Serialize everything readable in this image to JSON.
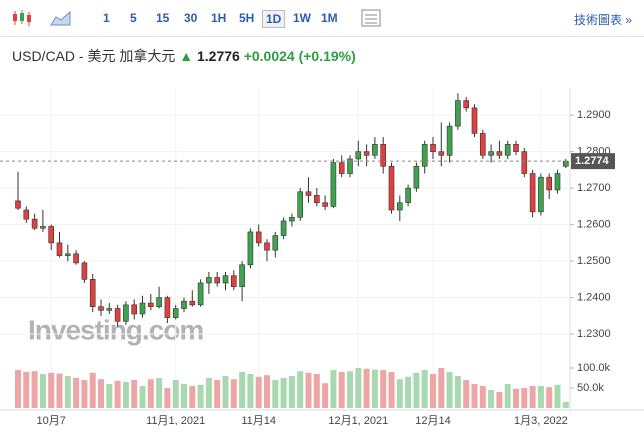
{
  "toolbar": {
    "intervals": [
      "1",
      "5",
      "15",
      "30",
      "1H",
      "5H",
      "1D",
      "1W",
      "1M"
    ],
    "active": "1D",
    "technical": "技術圖表"
  },
  "header": {
    "symbol": "USD/CAD - 美元 加拿大元",
    "price": "1.2776",
    "change": "+0.0024",
    "change_pct": "(+0.19%)"
  },
  "chart_data": {
    "type": "candlestick",
    "watermark": "Investing.com",
    "categories": [
      null,
      null,
      null,
      null,
      "10月7",
      null,
      null,
      null,
      null,
      null,
      null,
      null,
      null,
      null,
      null,
      null,
      null,
      null,
      null,
      "11月1, 2021",
      null,
      null,
      null,
      null,
      null,
      null,
      null,
      null,
      null,
      "11月14",
      null,
      null,
      null,
      null,
      null,
      null,
      null,
      null,
      null,
      null,
      null,
      "12月1, 2021",
      null,
      null,
      null,
      null,
      null,
      null,
      null,
      null,
      "12月14",
      null,
      null,
      null,
      null,
      null,
      null,
      null,
      null,
      null,
      null,
      null,
      null,
      "1月3, 2022",
      null,
      null,
      null
    ],
    "open": [
      1.2665,
      1.264,
      1.2615,
      1.259,
      1.2595,
      1.255,
      1.2515,
      1.252,
      1.2495,
      1.245,
      1.2375,
      1.2365,
      1.237,
      1.2335,
      1.238,
      1.2355,
      1.2385,
      1.2375,
      1.24,
      1.2345,
      1.237,
      1.239,
      1.238,
      1.244,
      1.2455,
      1.244,
      1.246,
      1.243,
      1.249,
      1.258,
      1.255,
      1.253,
      1.257,
      1.261,
      1.262,
      1.269,
      1.268,
      1.266,
      1.265,
      1.277,
      1.274,
      1.278,
      1.28,
      1.279,
      1.282,
      1.276,
      1.264,
      1.266,
      1.27,
      1.276,
      1.282,
      1.28,
      1.279,
      1.287,
      1.294,
      1.292,
      1.285,
      1.279,
      1.28,
      1.279,
      1.282,
      1.28,
      1.274,
      1.2635,
      1.273,
      1.2695,
      1.276
    ],
    "high": [
      1.2745,
      1.265,
      1.263,
      1.264,
      1.26,
      1.258,
      1.2545,
      1.253,
      1.25,
      1.2465,
      1.2395,
      1.2385,
      1.238,
      1.239,
      1.2395,
      1.2405,
      1.241,
      1.243,
      1.2405,
      1.238,
      1.24,
      1.242,
      1.245,
      1.247,
      1.247,
      1.247,
      1.2475,
      1.25,
      1.259,
      1.26,
      1.256,
      1.258,
      1.262,
      1.263,
      1.27,
      1.273,
      1.27,
      1.268,
      1.278,
      1.279,
      1.279,
      1.283,
      1.282,
      1.284,
      1.284,
      1.277,
      1.268,
      1.271,
      1.277,
      1.283,
      1.284,
      1.288,
      1.288,
      1.296,
      1.295,
      1.293,
      1.286,
      1.282,
      1.283,
      1.283,
      1.283,
      1.281,
      1.275,
      1.274,
      1.274,
      1.275,
      1.278
    ],
    "low": [
      1.264,
      1.2605,
      1.2585,
      1.258,
      1.253,
      1.251,
      1.25,
      1.249,
      1.244,
      1.236,
      1.235,
      1.2355,
      1.232,
      1.2325,
      1.234,
      1.2345,
      1.2365,
      1.237,
      1.233,
      1.234,
      1.236,
      1.2375,
      1.2375,
      1.241,
      1.243,
      1.242,
      1.242,
      1.239,
      1.248,
      1.254,
      1.25,
      1.251,
      1.256,
      1.2595,
      1.261,
      1.266,
      1.265,
      1.264,
      1.2645,
      1.273,
      1.273,
      1.276,
      1.276,
      1.278,
      1.274,
      1.263,
      1.261,
      1.265,
      1.269,
      1.274,
      1.278,
      1.276,
      1.277,
      1.286,
      1.291,
      1.284,
      1.278,
      1.277,
      1.278,
      1.278,
      1.279,
      1.273,
      1.262,
      1.2625,
      1.267,
      1.2685,
      1.2755
    ],
    "close": [
      1.2645,
      1.2615,
      1.259,
      1.2595,
      1.255,
      1.2515,
      1.252,
      1.2495,
      1.245,
      1.2375,
      1.2365,
      1.237,
      1.2335,
      1.238,
      1.2355,
      1.2385,
      1.2375,
      1.24,
      1.2345,
      1.237,
      1.239,
      1.238,
      1.244,
      1.2455,
      1.244,
      1.246,
      1.243,
      1.249,
      1.258,
      1.255,
      1.253,
      1.257,
      1.261,
      1.262,
      1.269,
      1.268,
      1.266,
      1.265,
      1.277,
      1.274,
      1.278,
      1.28,
      1.279,
      1.282,
      1.276,
      1.264,
      1.266,
      1.27,
      1.276,
      1.282,
      1.28,
      1.279,
      1.287,
      1.294,
      1.292,
      1.285,
      1.279,
      1.28,
      1.279,
      1.282,
      1.28,
      1.274,
      1.2635,
      1.273,
      1.2695,
      1.274,
      1.2774
    ],
    "ylim": [
      1.227,
      1.2969
    ],
    "yticks": [
      {
        "value": 1.29,
        "label": "1.2900"
      },
      {
        "value": 1.28,
        "label": "1.2800"
      },
      {
        "value": 1.27,
        "label": "1.2700"
      },
      {
        "value": 1.26,
        "label": "1.2600"
      },
      {
        "value": 1.25,
        "label": "1.2500"
      },
      {
        "value": 1.24,
        "label": "1.2400"
      },
      {
        "value": 1.23,
        "label": "1.2300"
      }
    ],
    "last_price": {
      "value": 1.2774,
      "label": "1.2774"
    },
    "up_color": "#3fa34d",
    "down_color": "#e0413f",
    "volume": {
      "values": [
        95000,
        90000,
        92000,
        85000,
        88000,
        86000,
        80000,
        75000,
        70000,
        88000,
        72000,
        60000,
        68000,
        65000,
        70000,
        55000,
        72000,
        75000,
        50000,
        70000,
        60000,
        55000,
        58000,
        75000,
        70000,
        80000,
        72000,
        90000,
        85000,
        78000,
        82000,
        70000,
        75000,
        80000,
        92000,
        88000,
        85000,
        62000,
        95000,
        90000,
        92000,
        100000,
        98000,
        96000,
        95000,
        90000,
        72000,
        78000,
        88000,
        95000,
        85000,
        100000,
        90000,
        80000,
        70000,
        60000,
        55000,
        45000,
        40000,
        60000,
        48000,
        50000,
        55000,
        55000,
        52000,
        58000,
        15000
      ],
      "ylim": [
        0,
        125000
      ],
      "yticks": [
        {
          "value": 100000,
          "label": "100.0k"
        },
        {
          "value": 50000,
          "label": "50.0k"
        }
      ],
      "up_color": "#a8d8b0",
      "down_color": "#eea5a5"
    }
  }
}
